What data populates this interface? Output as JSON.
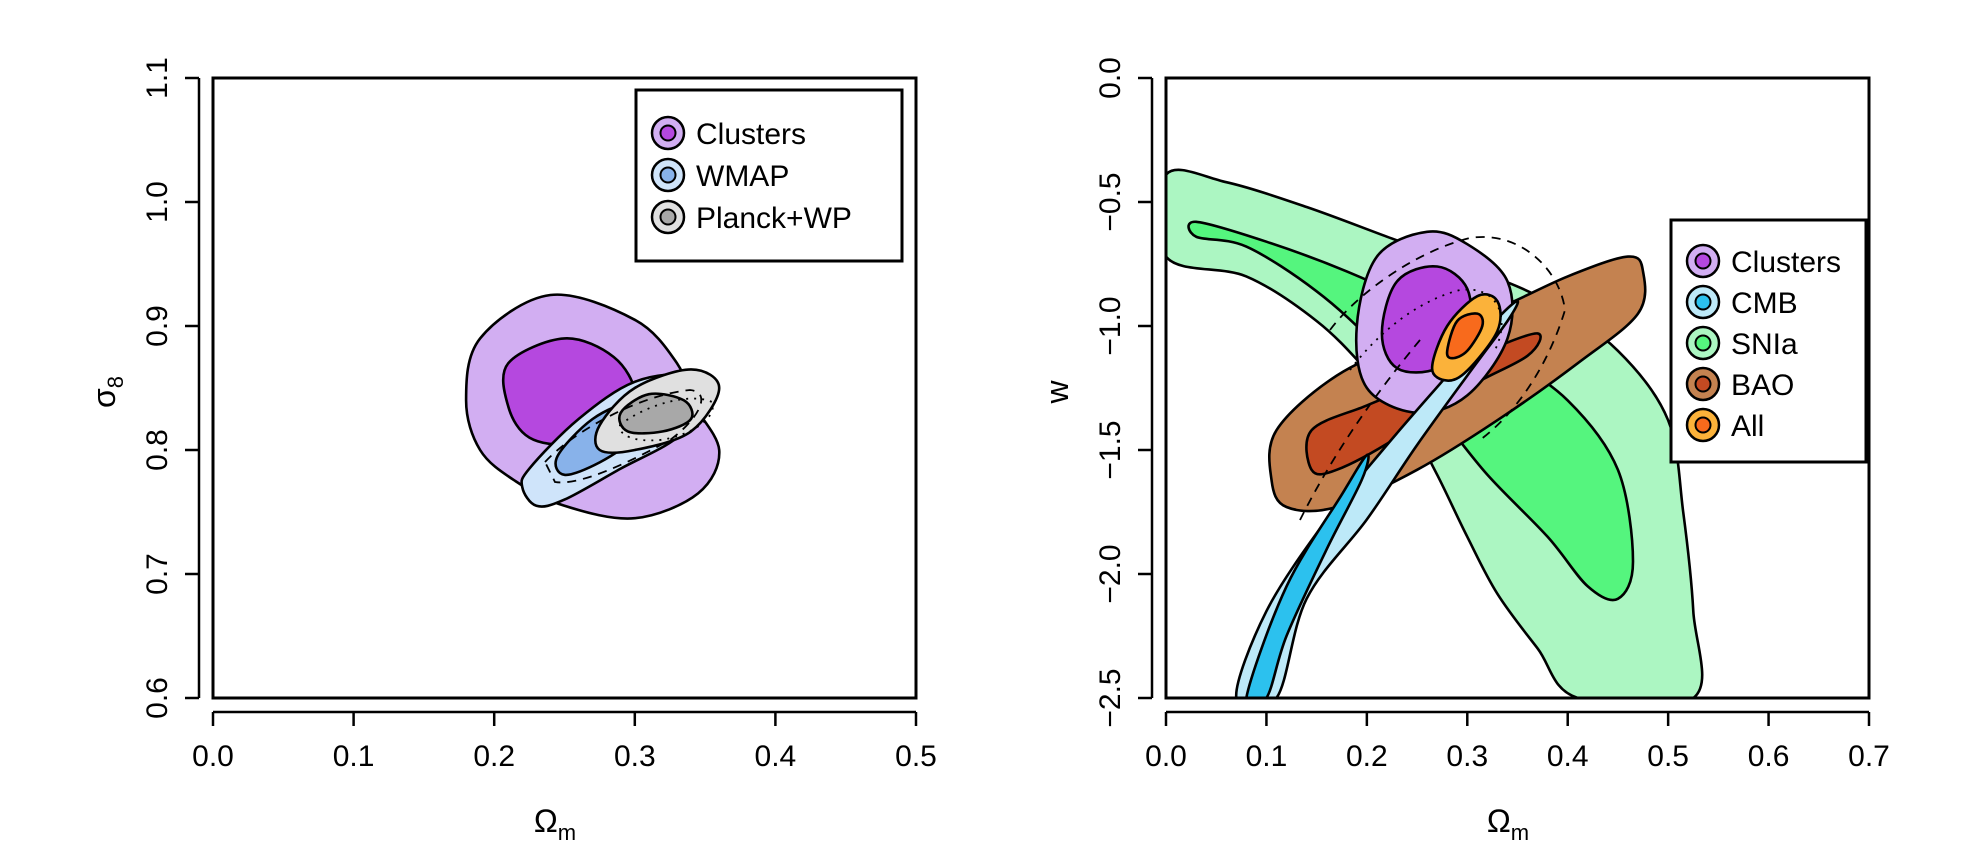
{
  "chart_data": [
    {
      "type": "contour",
      "id": "left",
      "xlabel": "Ω",
      "xlabel_sub": "m",
      "ylabel": "σ",
      "ylabel_sub": "8",
      "xlim": [
        0.0,
        0.5
      ],
      "ylim": [
        0.6,
        1.1
      ],
      "xticks": [
        "0.0",
        "0.1",
        "0.2",
        "0.3",
        "0.4",
        "0.5"
      ],
      "yticks": [
        "0.6",
        "0.7",
        "0.8",
        "0.9",
        "1.0",
        "1.1"
      ],
      "legend_position": "top-right",
      "legend": [
        {
          "label": "Clusters",
          "outer": "#d2aef2",
          "inner": "#b548df"
        },
        {
          "label": "WMAP",
          "outer": "#cfe4fa",
          "inner": "#88b2ea"
        },
        {
          "label": "Planck+WP",
          "outer": "#e0e0e0",
          "inner": "#a8a8a8"
        }
      ],
      "contours": [
        {
          "name": "Clusters",
          "color_68": "#b548df",
          "color_95": "#d2aef2",
          "outer": [
            [
              0.19,
              0.89
            ],
            [
              0.24,
              0.925
            ],
            [
              0.3,
              0.905
            ],
            [
              0.33,
              0.87
            ],
            [
              0.34,
              0.84
            ],
            [
              0.36,
              0.8
            ],
            [
              0.345,
              0.765
            ],
            [
              0.3,
              0.745
            ],
            [
              0.25,
              0.755
            ],
            [
              0.215,
              0.775
            ],
            [
              0.19,
              0.8
            ],
            [
              0.18,
              0.84
            ]
          ],
          "inner": [
            [
              0.21,
              0.87
            ],
            [
              0.25,
              0.89
            ],
            [
              0.285,
              0.875
            ],
            [
              0.3,
              0.845
            ],
            [
              0.285,
              0.82
            ],
            [
              0.255,
              0.805
            ],
            [
              0.225,
              0.81
            ],
            [
              0.21,
              0.835
            ]
          ]
        },
        {
          "name": "WMAP",
          "color_68": "#88b2ea",
          "color_95": "#cfe4fa",
          "outer": [
            [
              0.225,
              0.785
            ],
            [
              0.26,
              0.825
            ],
            [
              0.3,
              0.855
            ],
            [
              0.34,
              0.86
            ],
            [
              0.35,
              0.84
            ],
            [
              0.33,
              0.81
            ],
            [
              0.29,
              0.785
            ],
            [
              0.25,
              0.76
            ],
            [
              0.23,
              0.755
            ],
            [
              0.22,
              0.77
            ]
          ],
          "inner": [
            [
              0.245,
              0.795
            ],
            [
              0.27,
              0.825
            ],
            [
              0.3,
              0.84
            ],
            [
              0.315,
              0.835
            ],
            [
              0.3,
              0.81
            ],
            [
              0.275,
              0.79
            ],
            [
              0.25,
              0.78
            ]
          ]
        },
        {
          "name": "Planck+WP",
          "color_68": "#a8a8a8",
          "color_95": "#e0e0e0",
          "outer": [
            [
              0.275,
              0.82
            ],
            [
              0.3,
              0.85
            ],
            [
              0.34,
              0.865
            ],
            [
              0.36,
              0.85
            ],
            [
              0.34,
              0.815
            ],
            [
              0.3,
              0.8
            ],
            [
              0.275,
              0.8
            ]
          ],
          "inner": [
            [
              0.29,
              0.83
            ],
            [
              0.31,
              0.845
            ],
            [
              0.335,
              0.84
            ],
            [
              0.34,
              0.825
            ],
            [
              0.32,
              0.815
            ],
            [
              0.295,
              0.815
            ]
          ]
        }
      ]
    },
    {
      "type": "contour",
      "id": "right",
      "xlabel": "Ω",
      "xlabel_sub": "m",
      "ylabel": "w",
      "xlim": [
        0.0,
        0.7
      ],
      "ylim": [
        -2.5,
        0.0
      ],
      "xticks": [
        "0.0",
        "0.1",
        "0.2",
        "0.3",
        "0.4",
        "0.5",
        "0.6",
        "0.7"
      ],
      "yticks": [
        "−2.5",
        "−2.0",
        "−1.5",
        "−1.0",
        "−0.5",
        "0.0"
      ],
      "legend_position": "right",
      "legend": [
        {
          "label": "Clusters",
          "outer": "#d2aef2",
          "inner": "#b548df"
        },
        {
          "label": "CMB",
          "outer": "#bde9f8",
          "inner": "#2cc1ee"
        },
        {
          "label": "SNIa",
          "outer": "#acf6c2",
          "inner": "#55f57e"
        },
        {
          "label": "BAO",
          "outer": "#c48250",
          "inner": "#c34a22"
        },
        {
          "label": "All",
          "outer": "#fbb23a",
          "inner": "#f86a1c"
        }
      ],
      "contours": [
        {
          "name": "SNIa",
          "color_68": "#55f57e",
          "color_95": "#acf6c2",
          "outer": [
            [
              0.0,
              -0.39
            ],
            [
              0.06,
              -0.42
            ],
            [
              0.14,
              -0.52
            ],
            [
              0.22,
              -0.64
            ],
            [
              0.3,
              -0.76
            ],
            [
              0.38,
              -0.9
            ],
            [
              0.45,
              -1.1
            ],
            [
              0.5,
              -1.38
            ],
            [
              0.515,
              -1.75
            ],
            [
              0.525,
              -2.15
            ],
            [
              0.525,
              -2.5
            ],
            [
              0.41,
              -2.5
            ],
            [
              0.37,
              -2.3
            ],
            [
              0.33,
              -2.08
            ],
            [
              0.3,
              -1.85
            ],
            [
              0.27,
              -1.6
            ],
            [
              0.24,
              -1.38
            ],
            [
              0.2,
              -1.18
            ],
            [
              0.15,
              -0.98
            ],
            [
              0.08,
              -0.8
            ],
            [
              0.0,
              -0.72
            ]
          ],
          "inner": [
            [
              0.03,
              -0.58
            ],
            [
              0.1,
              -0.66
            ],
            [
              0.18,
              -0.78
            ],
            [
              0.26,
              -0.93
            ],
            [
              0.33,
              -1.1
            ],
            [
              0.4,
              -1.3
            ],
            [
              0.45,
              -1.58
            ],
            [
              0.465,
              -1.95
            ],
            [
              0.45,
              -2.1
            ],
            [
              0.42,
              -2.05
            ],
            [
              0.38,
              -1.85
            ],
            [
              0.32,
              -1.6
            ],
            [
              0.27,
              -1.35
            ],
            [
              0.21,
              -1.08
            ],
            [
              0.15,
              -0.86
            ],
            [
              0.08,
              -0.68
            ],
            [
              0.03,
              -0.64
            ]
          ]
        },
        {
          "name": "BAO",
          "color_68": "#c34a22",
          "color_95": "#c48250",
          "outer": [
            [
              0.11,
              -1.42
            ],
            [
              0.17,
              -1.2
            ],
            [
              0.25,
              -1.05
            ],
            [
              0.33,
              -0.93
            ],
            [
              0.4,
              -0.8
            ],
            [
              0.46,
              -0.72
            ],
            [
              0.475,
              -0.78
            ],
            [
              0.47,
              -0.95
            ],
            [
              0.41,
              -1.15
            ],
            [
              0.33,
              -1.38
            ],
            [
              0.25,
              -1.58
            ],
            [
              0.17,
              -1.73
            ],
            [
              0.12,
              -1.73
            ],
            [
              0.105,
              -1.62
            ]
          ],
          "inner": [
            [
              0.145,
              -1.42
            ],
            [
              0.2,
              -1.32
            ],
            [
              0.26,
              -1.22
            ],
            [
              0.32,
              -1.1
            ],
            [
              0.37,
              -1.03
            ],
            [
              0.36,
              -1.12
            ],
            [
              0.3,
              -1.25
            ],
            [
              0.23,
              -1.45
            ],
            [
              0.17,
              -1.58
            ],
            [
              0.145,
              -1.58
            ]
          ]
        },
        {
          "name": "Clusters",
          "color_68": "#b548df",
          "color_95": "#d2aef2",
          "outer": [
            [
              0.19,
              -1.0
            ],
            [
              0.21,
              -0.72
            ],
            [
              0.26,
              -0.62
            ],
            [
              0.3,
              -0.67
            ],
            [
              0.34,
              -0.82
            ],
            [
              0.34,
              -1.05
            ],
            [
              0.3,
              -1.28
            ],
            [
              0.25,
              -1.35
            ],
            [
              0.2,
              -1.25
            ]
          ],
          "inner": [
            [
              0.215,
              -1.03
            ],
            [
              0.23,
              -0.82
            ],
            [
              0.27,
              -0.76
            ],
            [
              0.3,
              -0.85
            ],
            [
              0.3,
              -1.03
            ],
            [
              0.27,
              -1.17
            ],
            [
              0.23,
              -1.17
            ]
          ]
        },
        {
          "name": "CMB",
          "color_68": "#2cc1ee",
          "color_95": "#bde9f8",
          "outer": [
            [
              0.07,
              -2.5
            ],
            [
              0.1,
              -2.15
            ],
            [
              0.16,
              -1.78
            ],
            [
              0.22,
              -1.48
            ],
            [
              0.28,
              -1.2
            ],
            [
              0.33,
              -0.97
            ],
            [
              0.35,
              -0.9
            ],
            [
              0.34,
              -0.98
            ],
            [
              0.3,
              -1.2
            ],
            [
              0.25,
              -1.48
            ],
            [
              0.2,
              -1.78
            ],
            [
              0.14,
              -2.1
            ],
            [
              0.11,
              -2.5
            ]
          ],
          "inner": [
            [
              0.08,
              -2.5
            ],
            [
              0.12,
              -2.05
            ],
            [
              0.175,
              -1.68
            ],
            [
              0.2,
              -1.52
            ],
            [
              0.195,
              -1.62
            ],
            [
              0.16,
              -1.9
            ],
            [
              0.12,
              -2.25
            ],
            [
              0.1,
              -2.5
            ]
          ]
        },
        {
          "name": "All",
          "color_68": "#f86a1c",
          "color_95": "#fbb23a",
          "outer": [
            [
              0.265,
              -1.17
            ],
            [
              0.28,
              -1.0
            ],
            [
              0.31,
              -0.88
            ],
            [
              0.33,
              -0.9
            ],
            [
              0.33,
              -1.02
            ],
            [
              0.3,
              -1.18
            ],
            [
              0.28,
              -1.22
            ]
          ],
          "inner": [
            [
              0.28,
              -1.1
            ],
            [
              0.29,
              -0.98
            ],
            [
              0.31,
              -0.95
            ],
            [
              0.315,
              -1.0
            ],
            [
              0.3,
              -1.1
            ],
            [
              0.285,
              -1.13
            ]
          ]
        }
      ]
    }
  ]
}
